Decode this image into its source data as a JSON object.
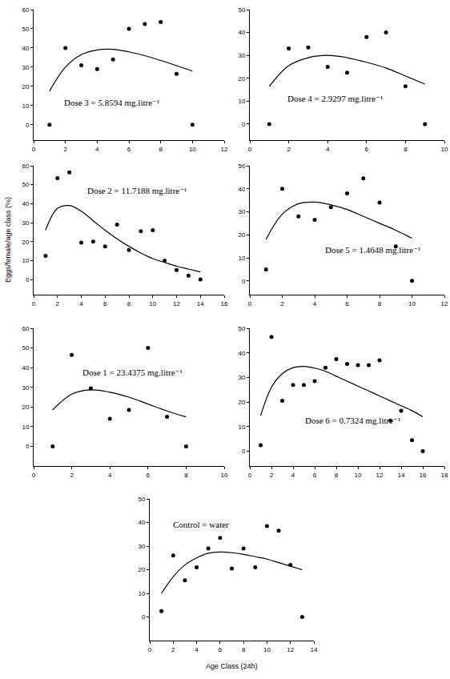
{
  "chart_data": [
    {
      "type": "scatter",
      "annotation": "Dose 3 = 5.8594 mg.litre⁻¹",
      "x": [
        1,
        2,
        3,
        4,
        5,
        6,
        7,
        8,
        9,
        10
      ],
      "series": [
        {
          "type": "scatter",
          "marker": "circle",
          "color": "#000000",
          "values": [
            0,
            40,
            31,
            29,
            34,
            50,
            52.5,
            53.5,
            26.5,
            0
          ]
        },
        {
          "type": "line",
          "line_style": "solid",
          "color": "#000000",
          "values": [
            17.5,
            30,
            36.5,
            39,
            39.3,
            38,
            36,
            33.5,
            30.8,
            28
          ]
        }
      ],
      "xlim": [
        0,
        12
      ],
      "xticks": [
        0,
        2,
        4,
        6,
        8,
        10,
        12
      ],
      "ylim": [
        -8,
        60
      ],
      "yticks": [
        0,
        10,
        20,
        30,
        40,
        50,
        60
      ],
      "grid": false
    },
    {
      "type": "scatter",
      "annotation": "Dose 4 = 2.9297 mg.litre⁻¹",
      "x": [
        1,
        2,
        3,
        4,
        5,
        6,
        7,
        8,
        9
      ],
      "series": [
        {
          "type": "scatter",
          "marker": "circle",
          "color": "#000000",
          "values": [
            0,
            33,
            33.5,
            25,
            22.5,
            38,
            40,
            16.5,
            0
          ]
        },
        {
          "type": "line",
          "line_style": "solid",
          "color": "#000000",
          "values": [
            16.5,
            25.5,
            29,
            30,
            29,
            27,
            24.5,
            21,
            17.5
          ]
        }
      ],
      "xlim": [
        0,
        10
      ],
      "xticks": [
        0,
        2,
        4,
        6,
        8,
        10
      ],
      "ylim": [
        -7,
        50
      ],
      "yticks": [
        0,
        10,
        20,
        30,
        40,
        50
      ],
      "grid": false
    },
    {
      "type": "scatter",
      "annotation": "Dose 2 = 11.7188 mg.litre⁻¹",
      "y_label": "Eggs/female/age class (%)",
      "x": [
        1,
        2,
        3,
        4,
        5,
        6,
        7,
        8,
        9,
        10,
        11,
        12,
        13,
        14
      ],
      "series": [
        {
          "type": "scatter",
          "marker": "circle",
          "color": "#000000",
          "values": [
            12.5,
            53.5,
            56.5,
            19.5,
            20,
            17.5,
            29,
            15.5,
            25.5,
            26,
            10,
            5,
            2,
            0
          ]
        },
        {
          "type": "line",
          "line_style": "solid",
          "color": "#000000",
          "values": [
            26,
            37.5,
            39,
            36,
            31,
            26,
            21.5,
            17.5,
            14,
            11,
            9,
            7,
            5.5,
            4
          ]
        }
      ],
      "xlim": [
        0,
        16
      ],
      "xticks": [
        0,
        2,
        4,
        6,
        8,
        10,
        12,
        14,
        16
      ],
      "ylim": [
        -8,
        60
      ],
      "yticks": [
        0,
        10,
        20,
        30,
        40,
        50,
        60
      ],
      "grid": false
    },
    {
      "type": "scatter",
      "annotation": "Dose 5 = 1.4648 mg.litre⁻¹",
      "x": [
        1,
        2,
        3,
        4,
        5,
        6,
        7,
        8,
        9,
        10
      ],
      "series": [
        {
          "type": "scatter",
          "marker": "circle",
          "color": "#000000",
          "values": [
            5,
            40,
            28,
            26.5,
            32,
            38,
            44.5,
            34,
            15,
            0
          ]
        },
        {
          "type": "line",
          "line_style": "solid",
          "color": "#000000",
          "values": [
            18,
            29,
            33.5,
            34.2,
            33,
            31,
            28,
            25,
            22,
            18.5
          ]
        }
      ],
      "xlim": [
        0,
        12
      ],
      "xticks": [
        0,
        2,
        4,
        6,
        8,
        10,
        12
      ],
      "ylim": [
        -6,
        50
      ],
      "yticks": [
        0,
        10,
        20,
        30,
        40,
        50
      ],
      "grid": false
    },
    {
      "type": "scatter",
      "annotation": "Dose 1 = 23.4375 mg.litre⁻¹",
      "x": [
        1,
        2,
        3,
        4,
        5,
        6,
        7,
        8
      ],
      "series": [
        {
          "type": "scatter",
          "marker": "circle",
          "color": "#000000",
          "values": [
            0,
            46.5,
            29.5,
            14,
            18.5,
            50,
            15,
            0
          ]
        },
        {
          "type": "line",
          "line_style": "solid",
          "color": "#000000",
          "values": [
            18.5,
            26.5,
            28.7,
            27.5,
            25,
            21.5,
            18,
            15
          ]
        }
      ],
      "xlim": [
        0,
        10
      ],
      "xticks": [
        0,
        2,
        4,
        6,
        8,
        10
      ],
      "ylim": [
        -10,
        60
      ],
      "yticks": [
        0,
        10,
        20,
        30,
        40,
        50,
        60
      ],
      "grid": false
    },
    {
      "type": "scatter",
      "annotation": "Dose 6 = 0.7324 mg.litre⁻¹",
      "x": [
        1,
        2,
        3,
        4,
        5,
        6,
        7,
        8,
        9,
        10,
        11,
        12,
        13,
        14,
        15,
        16
      ],
      "series": [
        {
          "type": "scatter",
          "marker": "circle",
          "color": "#000000",
          "values": [
            2.5,
            46.5,
            20.5,
            27,
            27,
            28.5,
            34,
            37.5,
            35.5,
            35,
            35,
            37,
            12.5,
            16.5,
            4.5,
            0
          ]
        },
        {
          "type": "line",
          "line_style": "solid",
          "color": "#000000",
          "values": [
            14.5,
            26,
            31.5,
            34,
            34.5,
            33.8,
            32.5,
            30.5,
            28.5,
            26.5,
            24.5,
            22.5,
            20.5,
            18.5,
            16.5,
            14
          ]
        }
      ],
      "xlim": [
        0,
        18
      ],
      "xticks": [
        0,
        2,
        4,
        6,
        8,
        10,
        12,
        14,
        16,
        18
      ],
      "ylim": [
        -6,
        50
      ],
      "yticks": [
        0,
        10,
        20,
        30,
        40,
        50
      ],
      "grid": false
    },
    {
      "type": "scatter",
      "annotation": "Control = water",
      "x_label": "Age Class (24h)",
      "x": [
        1,
        2,
        3,
        4,
        5,
        6,
        7,
        8,
        9,
        10,
        11,
        12,
        13
      ],
      "series": [
        {
          "type": "scatter",
          "marker": "circle",
          "color": "#000000",
          "values": [
            2.5,
            26,
            15.5,
            21,
            29,
            33.5,
            20.5,
            29,
            21,
            38.5,
            36.5,
            22,
            0
          ]
        },
        {
          "type": "line",
          "line_style": "solid",
          "color": "#000000",
          "values": [
            10,
            17,
            22,
            25,
            27,
            27.5,
            27.2,
            26.5,
            25.5,
            24.5,
            23,
            21.5,
            20
          ]
        }
      ],
      "xlim": [
        0,
        14
      ],
      "xticks": [
        0,
        2,
        4,
        6,
        8,
        10,
        12,
        14
      ],
      "ylim": [
        -10,
        50
      ],
      "yticks": [
        0,
        10,
        20,
        30,
        40,
        50
      ],
      "grid": false
    }
  ]
}
